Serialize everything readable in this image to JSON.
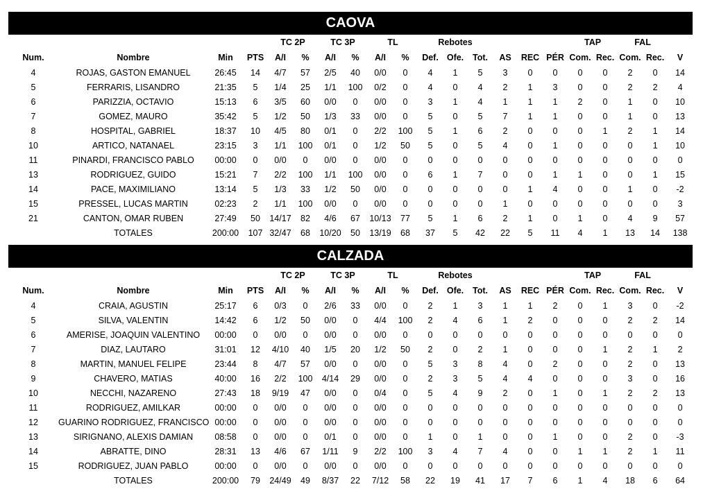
{
  "group_headers": {
    "tc2p": "TC 2P",
    "tc3p": "TC 3P",
    "tl": "TL",
    "rebotes": "Rebotes",
    "tap": "TAP",
    "fal": "FAL"
  },
  "columns": [
    "Num.",
    "Nombre",
    "Min",
    "PTS",
    "A/I",
    "%",
    "A/I",
    "%",
    "A/I",
    "%",
    "Def.",
    "Ofe.",
    "Tot.",
    "AS",
    "REC",
    "PÉR",
    "Com.",
    "Rec.",
    "Com.",
    "Rec.",
    "V"
  ],
  "teams": [
    {
      "name": "CAOVA",
      "rows": [
        [
          "4",
          "ROJAS, GASTON EMANUEL",
          "26:45",
          "14",
          "4/7",
          "57",
          "2/5",
          "40",
          "0/0",
          "0",
          "4",
          "1",
          "5",
          "3",
          "0",
          "0",
          "0",
          "0",
          "2",
          "0",
          "14"
        ],
        [
          "5",
          "FERRARIS, LISANDRO",
          "21:35",
          "5",
          "1/4",
          "25",
          "1/1",
          "100",
          "0/2",
          "0",
          "4",
          "0",
          "4",
          "2",
          "1",
          "3",
          "0",
          "0",
          "2",
          "2",
          "4"
        ],
        [
          "6",
          "PARIZZIA, OCTAVIO",
          "15:13",
          "6",
          "3/5",
          "60",
          "0/0",
          "0",
          "0/0",
          "0",
          "3",
          "1",
          "4",
          "1",
          "1",
          "1",
          "2",
          "0",
          "1",
          "0",
          "10"
        ],
        [
          "7",
          "GOMEZ, MAURO",
          "35:42",
          "5",
          "1/2",
          "50",
          "1/3",
          "33",
          "0/0",
          "0",
          "5",
          "0",
          "5",
          "7",
          "1",
          "1",
          "0",
          "0",
          "1",
          "0",
          "13"
        ],
        [
          "8",
          "HOSPITAL, GABRIEL",
          "18:37",
          "10",
          "4/5",
          "80",
          "0/1",
          "0",
          "2/2",
          "100",
          "5",
          "1",
          "6",
          "2",
          "0",
          "0",
          "0",
          "1",
          "2",
          "1",
          "14"
        ],
        [
          "10",
          "ARTICO, NATANAEL",
          "23:15",
          "3",
          "1/1",
          "100",
          "0/1",
          "0",
          "1/2",
          "50",
          "5",
          "0",
          "5",
          "4",
          "0",
          "1",
          "0",
          "0",
          "0",
          "1",
          "10"
        ],
        [
          "11",
          "PINARDI, FRANCISCO PABLO",
          "00:00",
          "0",
          "0/0",
          "0",
          "0/0",
          "0",
          "0/0",
          "0",
          "0",
          "0",
          "0",
          "0",
          "0",
          "0",
          "0",
          "0",
          "0",
          "0",
          "0"
        ],
        [
          "13",
          "RODRIGUEZ, GUIDO",
          "15:21",
          "7",
          "2/2",
          "100",
          "1/1",
          "100",
          "0/0",
          "0",
          "6",
          "1",
          "7",
          "0",
          "0",
          "1",
          "1",
          "0",
          "0",
          "1",
          "15"
        ],
        [
          "14",
          "PACE, MAXIMILIANO",
          "13:14",
          "5",
          "1/3",
          "33",
          "1/2",
          "50",
          "0/0",
          "0",
          "0",
          "0",
          "0",
          "0",
          "1",
          "4",
          "0",
          "0",
          "1",
          "0",
          "-2"
        ],
        [
          "15",
          "PRESSEL, LUCAS MARTIN",
          "02:23",
          "2",
          "1/1",
          "100",
          "0/0",
          "0",
          "0/0",
          "0",
          "0",
          "0",
          "0",
          "1",
          "0",
          "0",
          "0",
          "0",
          "0",
          "0",
          "3"
        ],
        [
          "21",
          "CANTON, OMAR RUBEN",
          "27:49",
          "50",
          "14/17",
          "82",
          "4/6",
          "67",
          "10/13",
          "77",
          "5",
          "1",
          "6",
          "2",
          "1",
          "0",
          "1",
          "0",
          "4",
          "9",
          "57"
        ]
      ],
      "totals": [
        "",
        "TOTALES",
        "200:00",
        "107",
        "32/47",
        "68",
        "10/20",
        "50",
        "13/19",
        "68",
        "37",
        "5",
        "42",
        "22",
        "5",
        "11",
        "4",
        "1",
        "13",
        "14",
        "138"
      ]
    },
    {
      "name": "CALZADA",
      "rows": [
        [
          "4",
          "CRAIA, AGUSTIN",
          "25:17",
          "6",
          "0/3",
          "0",
          "2/6",
          "33",
          "0/0",
          "0",
          "2",
          "1",
          "3",
          "1",
          "1",
          "2",
          "0",
          "1",
          "3",
          "0",
          "-2"
        ],
        [
          "5",
          "SILVA, VALENTIN",
          "14:42",
          "6",
          "1/2",
          "50",
          "0/0",
          "0",
          "4/4",
          "100",
          "2",
          "4",
          "6",
          "1",
          "2",
          "0",
          "0",
          "0",
          "2",
          "2",
          "14"
        ],
        [
          "6",
          "AMERISE, JOAQUIN VALENTINO",
          "00:00",
          "0",
          "0/0",
          "0",
          "0/0",
          "0",
          "0/0",
          "0",
          "0",
          "0",
          "0",
          "0",
          "0",
          "0",
          "0",
          "0",
          "0",
          "0",
          "0"
        ],
        [
          "7",
          "DIAZ, LAUTARO",
          "31:01",
          "12",
          "4/10",
          "40",
          "1/5",
          "20",
          "1/2",
          "50",
          "2",
          "0",
          "2",
          "1",
          "0",
          "0",
          "0",
          "1",
          "2",
          "1",
          "2"
        ],
        [
          "8",
          "MARTIN, MANUEL FELIPE",
          "23:44",
          "8",
          "4/7",
          "57",
          "0/0",
          "0",
          "0/0",
          "0",
          "5",
          "3",
          "8",
          "4",
          "0",
          "2",
          "0",
          "0",
          "2",
          "0",
          "13"
        ],
        [
          "9",
          "CHAVERO, MATIAS",
          "40:00",
          "16",
          "2/2",
          "100",
          "4/14",
          "29",
          "0/0",
          "0",
          "2",
          "3",
          "5",
          "4",
          "4",
          "0",
          "0",
          "0",
          "3",
          "0",
          "16"
        ],
        [
          "10",
          "NECCHI, NAZARENO",
          "27:43",
          "18",
          "9/19",
          "47",
          "0/0",
          "0",
          "0/4",
          "0",
          "5",
          "4",
          "9",
          "2",
          "0",
          "1",
          "0",
          "1",
          "2",
          "2",
          "13"
        ],
        [
          "11",
          "RODRIGUEZ, AMILKAR",
          "00:00",
          "0",
          "0/0",
          "0",
          "0/0",
          "0",
          "0/0",
          "0",
          "0",
          "0",
          "0",
          "0",
          "0",
          "0",
          "0",
          "0",
          "0",
          "0",
          "0"
        ],
        [
          "12",
          "GUARINO RODRIGUEZ, FRANCISCO",
          "00:00",
          "0",
          "0/0",
          "0",
          "0/0",
          "0",
          "0/0",
          "0",
          "0",
          "0",
          "0",
          "0",
          "0",
          "0",
          "0",
          "0",
          "0",
          "0",
          "0"
        ],
        [
          "13",
          "SIRIGNANO, ALEXIS DAMIAN",
          "08:58",
          "0",
          "0/0",
          "0",
          "0/1",
          "0",
          "0/0",
          "0",
          "1",
          "0",
          "1",
          "0",
          "0",
          "1",
          "0",
          "0",
          "2",
          "0",
          "-3"
        ],
        [
          "14",
          "ABRATTE, DINO",
          "28:31",
          "13",
          "4/6",
          "67",
          "1/11",
          "9",
          "2/2",
          "100",
          "3",
          "4",
          "7",
          "4",
          "0",
          "0",
          "1",
          "1",
          "2",
          "1",
          "11"
        ],
        [
          "15",
          "RODRIGUEZ, JUAN PABLO",
          "00:00",
          "0",
          "0/0",
          "0",
          "0/0",
          "0",
          "0/0",
          "0",
          "0",
          "0",
          "0",
          "0",
          "0",
          "0",
          "0",
          "0",
          "0",
          "0",
          "0"
        ]
      ],
      "totals": [
        "",
        "TOTALES",
        "200:00",
        "79",
        "24/49",
        "49",
        "8/37",
        "22",
        "7/12",
        "58",
        "22",
        "19",
        "41",
        "17",
        "7",
        "6",
        "1",
        "4",
        "18",
        "6",
        "64"
      ]
    }
  ]
}
